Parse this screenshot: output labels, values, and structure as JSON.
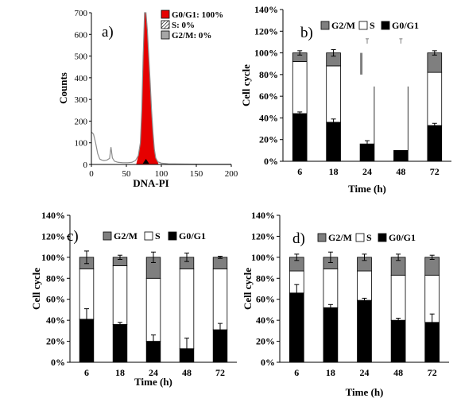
{
  "chart_data": [
    {
      "panel": "a)",
      "type": "histogram",
      "xlabel": "DNA-PI",
      "ylabel": "Counts",
      "xlim": [
        0,
        200
      ],
      "ylim": [
        0,
        700
      ],
      "xticks": [
        "0",
        "50",
        "100",
        "150",
        "200"
      ],
      "yticks": [
        "0",
        "100",
        "200",
        "300",
        "400",
        "500",
        "600",
        "700"
      ],
      "legend": [
        {
          "label": "G0/G1: 100%",
          "color": "#e60000",
          "swatch": "solid"
        },
        {
          "label": "S: 0%",
          "color": "#ffffff",
          "swatch": "hatched"
        },
        {
          "label": "G2/M: 0%",
          "color": "#a6a6a6",
          "swatch": "solid"
        }
      ],
      "curve": {
        "x": [
          0,
          3,
          6,
          9,
          12,
          15,
          18,
          22,
          26,
          28,
          30,
          33,
          38,
          45,
          52,
          58,
          63,
          67,
          70,
          72,
          74,
          76,
          78,
          80,
          82,
          84,
          86,
          88,
          90,
          92,
          95,
          100,
          110,
          130,
          160,
          200
        ],
        "y": [
          150,
          140,
          100,
          50,
          25,
          20,
          18,
          20,
          28,
          80,
          30,
          15,
          10,
          8,
          8,
          10,
          18,
          40,
          100,
          250,
          500,
          700,
          700,
          620,
          500,
          380,
          250,
          150,
          70,
          30,
          12,
          6,
          3,
          2,
          1,
          1
        ]
      },
      "filled_region": [
        64,
        96
      ],
      "marker_x": 78
    },
    {
      "panel": "b)",
      "type": "stacked-bar",
      "categories": [
        "6",
        "18",
        "24",
        "48",
        "72"
      ],
      "xlabel": "Time (h)",
      "ylabel": "Cell cycle",
      "ylim": [
        0,
        140
      ],
      "yticks": [
        "0%",
        "20%",
        "40%",
        "60%",
        "80%",
        "100%",
        "120%",
        "140%"
      ],
      "legend": [
        "G2/M",
        "S",
        "G0/G1"
      ],
      "series": [
        {
          "name": "G0/G1",
          "color": "#000000",
          "values": [
            44,
            36,
            16,
            10,
            33
          ],
          "errors": [
            1.5,
            3,
            3,
            0,
            2
          ]
        },
        {
          "name": "S",
          "color": "#ffffff",
          "values": [
            48,
            52,
            null,
            null,
            49
          ],
          "errors": [
            0,
            0,
            0,
            0,
            0
          ]
        },
        {
          "name": "G2/M",
          "color": "#7f7f7f",
          "values": [
            8,
            12,
            null,
            null,
            18
          ],
          "errors": [
            2,
            3,
            0,
            0,
            2
          ]
        }
      ],
      "partial_columns": [
        {
          "cat": "24",
          "grey_band": [
            80,
            100
          ],
          "line_top": 69,
          "error_top": 113
        },
        {
          "cat": "48",
          "line_top": 69,
          "error_top": 113
        }
      ]
    },
    {
      "panel": "c)",
      "type": "stacked-bar",
      "categories": [
        "6",
        "18",
        "24",
        "48",
        "72"
      ],
      "xlabel": "Time (h)",
      "ylabel": "Cell cycle",
      "ylim": [
        0,
        140
      ],
      "yticks": [
        "0%",
        "20%",
        "40%",
        "60%",
        "80%",
        "100%",
        "120%",
        "140%"
      ],
      "legend": [
        "G2/M",
        "S",
        "G0/G1"
      ],
      "series": [
        {
          "name": "G0/G1",
          "color": "#000000",
          "values": [
            41,
            36,
            20,
            13,
            31
          ],
          "errors": [
            10,
            2,
            6,
            10,
            6
          ]
        },
        {
          "name": "S",
          "color": "#ffffff",
          "values": [
            48,
            56,
            60,
            76,
            58
          ],
          "errors": [
            0,
            0,
            0,
            0,
            0
          ]
        },
        {
          "name": "G2/M",
          "color": "#7f7f7f",
          "values": [
            11,
            8,
            20,
            11,
            11
          ],
          "errors": [
            6,
            2,
            5,
            4,
            1
          ]
        }
      ]
    },
    {
      "panel": "d)",
      "type": "stacked-bar",
      "categories": [
        "6",
        "18",
        "24",
        "48",
        "72"
      ],
      "xlabel": "Time (h)",
      "ylabel": "Cell cycle",
      "ylim": [
        0,
        140
      ],
      "yticks": [
        "0%",
        "20%",
        "40%",
        "60%",
        "80%",
        "100%",
        "120%",
        "140%"
      ],
      "legend": [
        "G2/M",
        "S",
        "G0/G1"
      ],
      "series": [
        {
          "name": "G0/G1",
          "color": "#000000",
          "values": [
            66,
            52,
            59,
            40,
            38
          ],
          "errors": [
            8,
            3,
            2,
            2,
            8
          ]
        },
        {
          "name": "S",
          "color": "#ffffff",
          "values": [
            21,
            37,
            28,
            43,
            45
          ],
          "errors": [
            0,
            0,
            0,
            0,
            0
          ]
        },
        {
          "name": "G2/M",
          "color": "#7f7f7f",
          "values": [
            13,
            11,
            13,
            17,
            17
          ],
          "errors": [
            3,
            5,
            3,
            3,
            2
          ]
        }
      ]
    }
  ]
}
